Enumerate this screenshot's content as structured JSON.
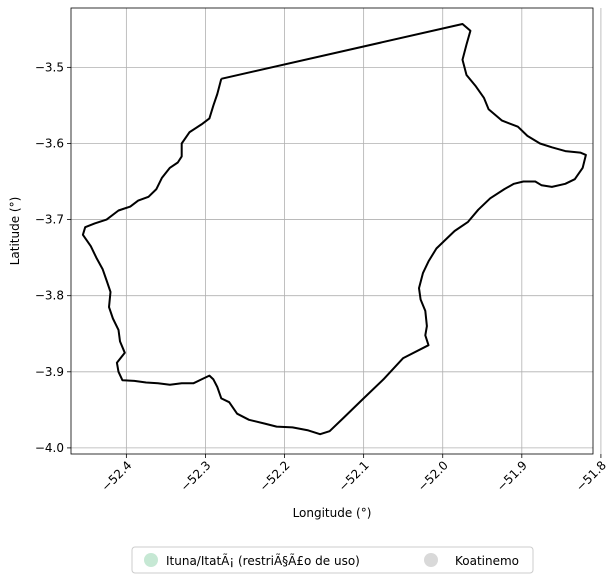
{
  "chart_data": {
    "type": "map",
    "xlabel": "Longitude (°)",
    "ylabel": "Latitude (°)",
    "xlim": [
      -52.47,
      -51.81
    ],
    "ylim": [
      -4.008,
      -3.422
    ],
    "grid": true,
    "legend_placement": "bottom-center",
    "x_ticks": [
      {
        "value": -52.4,
        "label": "−52.4"
      },
      {
        "value": -52.3,
        "label": "−52.3"
      },
      {
        "value": -52.2,
        "label": "−52.2"
      },
      {
        "value": -52.1,
        "label": "−52.1"
      },
      {
        "value": -52.0,
        "label": "−52.0"
      },
      {
        "value": -51.9,
        "label": "−51.9"
      },
      {
        "value": -51.8,
        "label": "−51.8"
      }
    ],
    "y_ticks": [
      {
        "value": -3.5,
        "label": "−3.5"
      },
      {
        "value": -3.6,
        "label": "−3.6"
      },
      {
        "value": -3.7,
        "label": "−3.7"
      },
      {
        "value": -3.8,
        "label": "−3.8"
      },
      {
        "value": -3.9,
        "label": "−3.9"
      },
      {
        "value": -4.0,
        "label": "−4.0"
      }
    ],
    "legend": [
      {
        "label": "Ituna/ItatÃ¡ (restriÃ§Ã£o de uso)",
        "color": "#c6e8d4"
      },
      {
        "label": "Koatinemo",
        "color": "#d9d9d9"
      }
    ],
    "boundary": {
      "color": "#000000",
      "points": [
        [
          -52.28,
          -3.515
        ],
        [
          -51.975,
          -3.443
        ],
        [
          -51.965,
          -3.452
        ],
        [
          -51.97,
          -3.47
        ],
        [
          -51.975,
          -3.49
        ],
        [
          -51.97,
          -3.51
        ],
        [
          -51.958,
          -3.525
        ],
        [
          -51.948,
          -3.54
        ],
        [
          -51.942,
          -3.555
        ],
        [
          -51.925,
          -3.57
        ],
        [
          -51.905,
          -3.578
        ],
        [
          -51.893,
          -3.59
        ],
        [
          -51.877,
          -3.6
        ],
        [
          -51.862,
          -3.605
        ],
        [
          -51.845,
          -3.61
        ],
        [
          -51.826,
          -3.612
        ],
        [
          -51.819,
          -3.615
        ],
        [
          -51.823,
          -3.632
        ],
        [
          -51.833,
          -3.647
        ],
        [
          -51.845,
          -3.653
        ],
        [
          -51.862,
          -3.657
        ],
        [
          -51.875,
          -3.655
        ],
        [
          -51.883,
          -3.65
        ],
        [
          -51.898,
          -3.65
        ],
        [
          -51.91,
          -3.653
        ],
        [
          -51.922,
          -3.66
        ],
        [
          -51.94,
          -3.672
        ],
        [
          -51.955,
          -3.687
        ],
        [
          -51.968,
          -3.703
        ],
        [
          -51.985,
          -3.715
        ],
        [
          -51.998,
          -3.728
        ],
        [
          -52.008,
          -3.738
        ],
        [
          -52.018,
          -3.755
        ],
        [
          -52.025,
          -3.77
        ],
        [
          -52.03,
          -3.79
        ],
        [
          -52.028,
          -3.805
        ],
        [
          -52.022,
          -3.82
        ],
        [
          -52.02,
          -3.84
        ],
        [
          -52.022,
          -3.852
        ],
        [
          -52.018,
          -3.865
        ],
        [
          -52.05,
          -3.882
        ],
        [
          -52.075,
          -3.91
        ],
        [
          -52.1,
          -3.935
        ],
        [
          -52.125,
          -3.96
        ],
        [
          -52.143,
          -3.978
        ],
        [
          -52.155,
          -3.982
        ],
        [
          -52.17,
          -3.977
        ],
        [
          -52.19,
          -3.973
        ],
        [
          -52.21,
          -3.972
        ],
        [
          -52.225,
          -3.968
        ],
        [
          -52.245,
          -3.963
        ],
        [
          -52.26,
          -3.955
        ],
        [
          -52.27,
          -3.94
        ],
        [
          -52.28,
          -3.935
        ],
        [
          -52.285,
          -3.92
        ],
        [
          -52.29,
          -3.91
        ],
        [
          -52.295,
          -3.905
        ],
        [
          -52.305,
          -3.91
        ],
        [
          -52.315,
          -3.915
        ],
        [
          -52.33,
          -3.915
        ],
        [
          -52.345,
          -3.917
        ],
        [
          -52.36,
          -3.915
        ],
        [
          -52.375,
          -3.914
        ],
        [
          -52.39,
          -3.912
        ],
        [
          -52.405,
          -3.911
        ],
        [
          -52.41,
          -3.9
        ],
        [
          -52.412,
          -3.888
        ],
        [
          -52.402,
          -3.875
        ],
        [
          -52.408,
          -3.86
        ],
        [
          -52.41,
          -3.845
        ],
        [
          -52.417,
          -3.83
        ],
        [
          -52.422,
          -3.815
        ],
        [
          -52.42,
          -3.795
        ],
        [
          -52.425,
          -3.78
        ],
        [
          -52.43,
          -3.765
        ],
        [
          -52.438,
          -3.75
        ],
        [
          -52.445,
          -3.735
        ],
        [
          -52.455,
          -3.72
        ],
        [
          -52.452,
          -3.71
        ],
        [
          -52.44,
          -3.705
        ],
        [
          -52.425,
          -3.7
        ],
        [
          -52.41,
          -3.688
        ],
        [
          -52.395,
          -3.683
        ],
        [
          -52.385,
          -3.675
        ],
        [
          -52.372,
          -3.67
        ],
        [
          -52.362,
          -3.66
        ],
        [
          -52.355,
          -3.645
        ],
        [
          -52.345,
          -3.632
        ],
        [
          -52.335,
          -3.625
        ],
        [
          -52.33,
          -3.617
        ],
        [
          -52.33,
          -3.6
        ],
        [
          -52.32,
          -3.585
        ],
        [
          -52.305,
          -3.575
        ],
        [
          -52.295,
          -3.567
        ],
        [
          -52.29,
          -3.55
        ],
        [
          -52.285,
          -3.535
        ],
        [
          -52.28,
          -3.515
        ]
      ]
    }
  }
}
